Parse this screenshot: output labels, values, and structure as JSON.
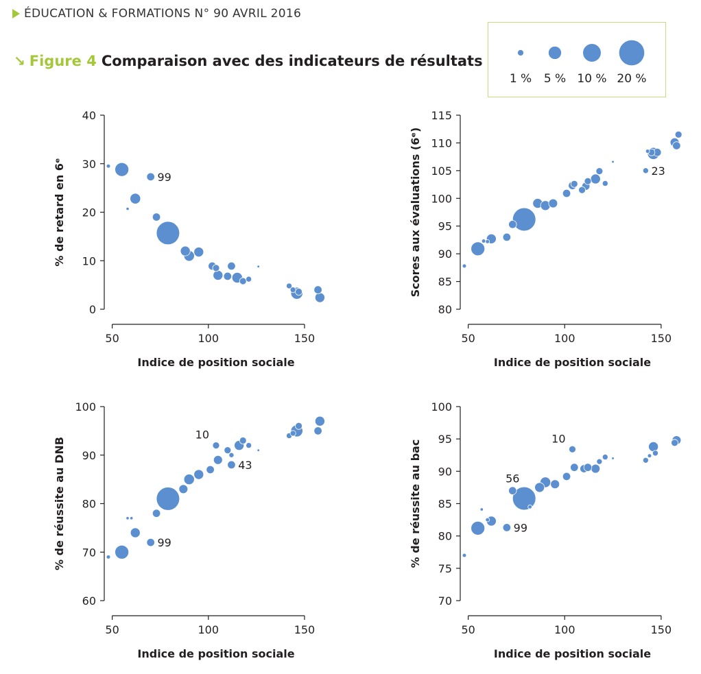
{
  "header": {
    "text": "ÉDUCATION & FORMATIONS N° 90 AVRIL 2016"
  },
  "figure": {
    "label": "Figure 4",
    "title": "Comparaison avec des indicateurs de résultats"
  },
  "legend": {
    "items": [
      {
        "label": "1 %",
        "pct": 1
      },
      {
        "label": "5 %",
        "pct": 5
      },
      {
        "label": "10 %",
        "pct": 10
      },
      {
        "label": "20 %",
        "pct": 20
      }
    ]
  },
  "colors": {
    "bubble": "#5b8fcf",
    "accent": "#a5c83a",
    "legend_border": "#c6dc82",
    "text": "#231f20"
  },
  "chart_data": [
    {
      "type": "scatter",
      "xlabel": "Indice de position sociale",
      "ylabel": "% de retard en 6ᵉ",
      "xlim": [
        48,
        160
      ],
      "ylim": [
        0,
        40
      ],
      "xticks": [
        50,
        100,
        150
      ],
      "yticks": [
        0,
        10,
        20,
        30,
        40
      ],
      "points": [
        {
          "x": 48,
          "y": 29.5,
          "size": 0.5
        },
        {
          "x": 55,
          "y": 28.8,
          "size": 6
        },
        {
          "x": 70,
          "y": 27.3,
          "size": 2,
          "label": "99"
        },
        {
          "x": 62,
          "y": 22.8,
          "size": 3.5
        },
        {
          "x": 58,
          "y": 20.7,
          "size": 0.3
        },
        {
          "x": 73,
          "y": 19,
          "size": 2
        },
        {
          "x": 79,
          "y": 15.7,
          "size": 17
        },
        {
          "x": 88,
          "y": 12,
          "size": 3
        },
        {
          "x": 90,
          "y": 11,
          "size": 3.5
        },
        {
          "x": 95,
          "y": 11.8,
          "size": 3
        },
        {
          "x": 102,
          "y": 8.9,
          "size": 2
        },
        {
          "x": 104,
          "y": 8.5,
          "size": 1.5
        },
        {
          "x": 105,
          "y": 7,
          "size": 3
        },
        {
          "x": 110,
          "y": 6.8,
          "size": 2
        },
        {
          "x": 112,
          "y": 8.9,
          "size": 2
        },
        {
          "x": 115,
          "y": 6.5,
          "size": 3.5
        },
        {
          "x": 118,
          "y": 5.8,
          "size": 1.5
        },
        {
          "x": 121,
          "y": 6.2,
          "size": 1
        },
        {
          "x": 126,
          "y": 8.8,
          "size": 0.2
        },
        {
          "x": 142,
          "y": 4.8,
          "size": 1
        },
        {
          "x": 144,
          "y": 4,
          "size": 1
        },
        {
          "x": 146,
          "y": 3.3,
          "size": 4.5
        },
        {
          "x": 147,
          "y": 3.6,
          "size": 1.5
        },
        {
          "x": 157,
          "y": 4,
          "size": 2
        },
        {
          "x": 158,
          "y": 2.4,
          "size": 3
        }
      ]
    },
    {
      "type": "scatter",
      "xlabel": "Indice de position sociale",
      "ylabel": "Scores aux évaluations (6ᵉ)",
      "xlim": [
        48,
        160
      ],
      "ylim": [
        80,
        115
      ],
      "xticks": [
        50,
        100,
        150
      ],
      "yticks": [
        80,
        85,
        90,
        95,
        100,
        105,
        110,
        115
      ],
      "points": [
        {
          "x": 48,
          "y": 87.8,
          "size": 0.5
        },
        {
          "x": 55,
          "y": 90.9,
          "size": 6
        },
        {
          "x": 58,
          "y": 92.3,
          "size": 0.5
        },
        {
          "x": 60,
          "y": 92.2,
          "size": 0.5
        },
        {
          "x": 62,
          "y": 92.7,
          "size": 3
        },
        {
          "x": 70,
          "y": 93,
          "size": 2
        },
        {
          "x": 73,
          "y": 95.3,
          "size": 2
        },
        {
          "x": 79,
          "y": 96.2,
          "size": 17
        },
        {
          "x": 86,
          "y": 99.1,
          "size": 3
        },
        {
          "x": 90,
          "y": 98.7,
          "size": 3
        },
        {
          "x": 94,
          "y": 99.1,
          "size": 2.5
        },
        {
          "x": 101,
          "y": 100.9,
          "size": 2
        },
        {
          "x": 104,
          "y": 102.3,
          "size": 2
        },
        {
          "x": 105,
          "y": 102.6,
          "size": 1.5
        },
        {
          "x": 109,
          "y": 101.5,
          "size": 1.5
        },
        {
          "x": 111,
          "y": 102.2,
          "size": 2
        },
        {
          "x": 112,
          "y": 103.1,
          "size": 1.5
        },
        {
          "x": 116,
          "y": 103.5,
          "size": 3
        },
        {
          "x": 118,
          "y": 104.9,
          "size": 1.5
        },
        {
          "x": 121,
          "y": 102.7,
          "size": 1
        },
        {
          "x": 125,
          "y": 106.6,
          "size": 0.2
        },
        {
          "x": 142,
          "y": 105,
          "size": 1,
          "label": "23"
        },
        {
          "x": 143,
          "y": 108.5,
          "size": 0.5
        },
        {
          "x": 145,
          "y": 108.3,
          "size": 1.5
        },
        {
          "x": 146,
          "y": 108.1,
          "size": 4.5
        },
        {
          "x": 148,
          "y": 108.3,
          "size": 2
        },
        {
          "x": 157,
          "y": 110.1,
          "size": 2.5
        },
        {
          "x": 158,
          "y": 109.5,
          "size": 2
        },
        {
          "x": 159,
          "y": 111.5,
          "size": 1.5
        }
      ]
    },
    {
      "type": "scatter",
      "xlabel": "Indice de position sociale",
      "ylabel": "% de réussite au DNB",
      "xlim": [
        48,
        160
      ],
      "ylim": [
        60,
        100
      ],
      "xticks": [
        50,
        100,
        150
      ],
      "yticks": [
        60,
        70,
        80,
        90,
        100
      ],
      "points": [
        {
          "x": 48,
          "y": 69,
          "size": 0.5
        },
        {
          "x": 55,
          "y": 70,
          "size": 6
        },
        {
          "x": 58,
          "y": 77,
          "size": 0.3
        },
        {
          "x": 60,
          "y": 77,
          "size": 0.3
        },
        {
          "x": 62,
          "y": 74,
          "size": 3
        },
        {
          "x": 70,
          "y": 72,
          "size": 2,
          "label": "99"
        },
        {
          "x": 73,
          "y": 78,
          "size": 2
        },
        {
          "x": 79,
          "y": 81,
          "size": 17
        },
        {
          "x": 87,
          "y": 83,
          "size": 2.5
        },
        {
          "x": 90,
          "y": 85,
          "size": 3.5
        },
        {
          "x": 95,
          "y": 86,
          "size": 3
        },
        {
          "x": 101,
          "y": 87,
          "size": 2
        },
        {
          "x": 105,
          "y": 89,
          "size": 2.5
        },
        {
          "x": 104,
          "y": 92,
          "size": 1.5,
          "label": "10"
        },
        {
          "x": 110,
          "y": 91,
          "size": 1.5
        },
        {
          "x": 112,
          "y": 90,
          "size": 0.8
        },
        {
          "x": 112,
          "y": 88,
          "size": 2,
          "label": "43"
        },
        {
          "x": 116,
          "y": 92,
          "size": 3
        },
        {
          "x": 118,
          "y": 93,
          "size": 1.5
        },
        {
          "x": 121,
          "y": 92,
          "size": 1
        },
        {
          "x": 126,
          "y": 91,
          "size": 0.2
        },
        {
          "x": 142,
          "y": 94,
          "size": 1
        },
        {
          "x": 144,
          "y": 94.5,
          "size": 1
        },
        {
          "x": 146,
          "y": 95,
          "size": 4.5
        },
        {
          "x": 147,
          "y": 96,
          "size": 1.5
        },
        {
          "x": 157,
          "y": 95,
          "size": 2
        },
        {
          "x": 158,
          "y": 97,
          "size": 3
        }
      ]
    },
    {
      "type": "scatter",
      "xlabel": "Indice de position sociale",
      "ylabel": "% de réussite au bac",
      "xlim": [
        48,
        160
      ],
      "ylim": [
        70,
        100
      ],
      "xticks": [
        50,
        100,
        150
      ],
      "yticks": [
        70,
        75,
        80,
        85,
        90,
        95,
        100
      ],
      "points": [
        {
          "x": 48,
          "y": 77,
          "size": 0.5
        },
        {
          "x": 55,
          "y": 81.2,
          "size": 6
        },
        {
          "x": 57,
          "y": 84.1,
          "size": 0.3
        },
        {
          "x": 60,
          "y": 82.5,
          "size": 0.5
        },
        {
          "x": 62,
          "y": 82.3,
          "size": 3
        },
        {
          "x": 70,
          "y": 81.3,
          "size": 2,
          "label": "99"
        },
        {
          "x": 73,
          "y": 87,
          "size": 2,
          "label": "56"
        },
        {
          "x": 79,
          "y": 85.8,
          "size": 17
        },
        {
          "x": 82,
          "y": 84.5,
          "size": 0.5
        },
        {
          "x": 87,
          "y": 87.5,
          "size": 3
        },
        {
          "x": 90,
          "y": 88.3,
          "size": 3.5
        },
        {
          "x": 95,
          "y": 88,
          "size": 2.5
        },
        {
          "x": 101,
          "y": 89.2,
          "size": 2
        },
        {
          "x": 104,
          "y": 93.4,
          "size": 1.5,
          "label": "10"
        },
        {
          "x": 105,
          "y": 90.6,
          "size": 2
        },
        {
          "x": 110,
          "y": 90.4,
          "size": 2
        },
        {
          "x": 112,
          "y": 90.6,
          "size": 2
        },
        {
          "x": 116,
          "y": 90.4,
          "size": 2.5
        },
        {
          "x": 118,
          "y": 91.5,
          "size": 1
        },
        {
          "x": 121,
          "y": 92.2,
          "size": 1
        },
        {
          "x": 125,
          "y": 92,
          "size": 0.2
        },
        {
          "x": 142,
          "y": 91.7,
          "size": 1
        },
        {
          "x": 144,
          "y": 92.4,
          "size": 0.5
        },
        {
          "x": 146,
          "y": 93.8,
          "size": 3
        },
        {
          "x": 147,
          "y": 92.8,
          "size": 1
        },
        {
          "x": 157,
          "y": 94.4,
          "size": 1.5
        },
        {
          "x": 158,
          "y": 94.8,
          "size": 2.5
        }
      ]
    }
  ]
}
